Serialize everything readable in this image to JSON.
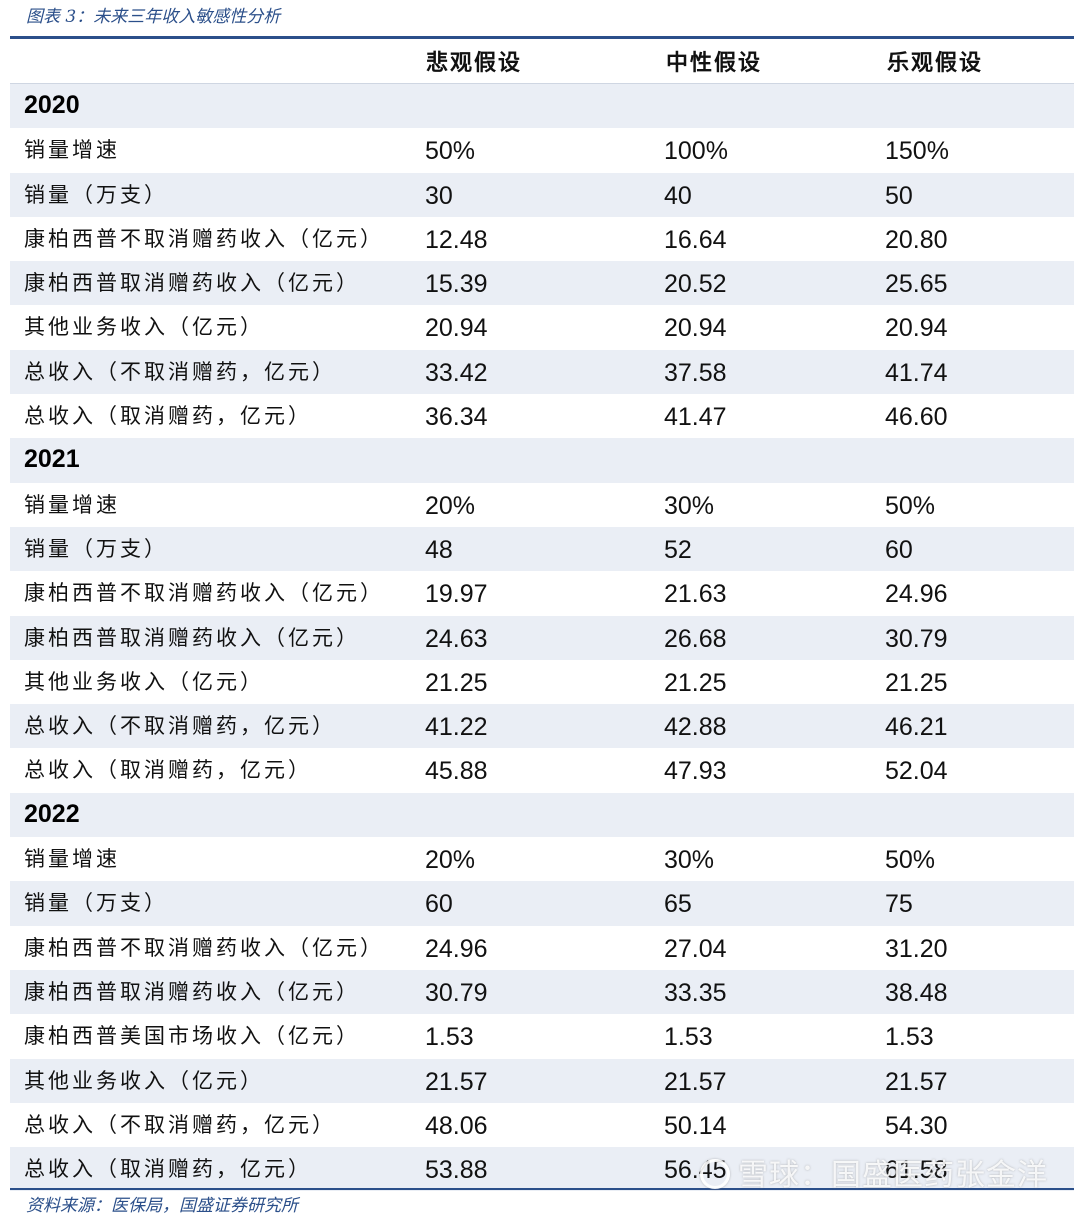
{
  "caption": "图表 3：未来三年收入敏感性分析",
  "columns": [
    "悲观假设",
    "中性假设",
    "乐观假设"
  ],
  "sections": [
    {
      "year": "2020",
      "rows": [
        {
          "label": "销量增速",
          "values": [
            "50%",
            "100%",
            "150%"
          ]
        },
        {
          "label": "销量（万支）",
          "values": [
            "30",
            "40",
            "50"
          ]
        },
        {
          "label": "康柏西普不取消赠药收入（亿元）",
          "values": [
            "12.48",
            "16.64",
            "20.80"
          ]
        },
        {
          "label": "康柏西普取消赠药收入（亿元）",
          "values": [
            "15.39",
            "20.52",
            "25.65"
          ]
        },
        {
          "label": "其他业务收入（亿元）",
          "values": [
            "20.94",
            "20.94",
            "20.94"
          ]
        },
        {
          "label": "总收入（不取消赠药，亿元）",
          "values": [
            "33.42",
            "37.58",
            "41.74"
          ]
        },
        {
          "label": "总收入（取消赠药，亿元）",
          "values": [
            "36.34",
            "41.47",
            "46.60"
          ]
        }
      ]
    },
    {
      "year": "2021",
      "rows": [
        {
          "label": "销量增速",
          "values": [
            "20%",
            "30%",
            "50%"
          ]
        },
        {
          "label": "销量（万支）",
          "values": [
            "48",
            "52",
            "60"
          ]
        },
        {
          "label": "康柏西普不取消赠药收入（亿元）",
          "values": [
            "19.97",
            "21.63",
            "24.96"
          ]
        },
        {
          "label": "康柏西普取消赠药收入（亿元）",
          "values": [
            "24.63",
            "26.68",
            "30.79"
          ]
        },
        {
          "label": "其他业务收入（亿元）",
          "values": [
            "21.25",
            "21.25",
            "21.25"
          ]
        },
        {
          "label": "总收入（不取消赠药，亿元）",
          "values": [
            "41.22",
            "42.88",
            "46.21"
          ]
        },
        {
          "label": "总收入（取消赠药，亿元）",
          "values": [
            "45.88",
            "47.93",
            "52.04"
          ]
        }
      ]
    },
    {
      "year": "2022",
      "rows": [
        {
          "label": "销量增速",
          "values": [
            "20%",
            "30%",
            "50%"
          ]
        },
        {
          "label": "销量（万支）",
          "values": [
            "60",
            "65",
            "75"
          ]
        },
        {
          "label": "康柏西普不取消赠药收入（亿元）",
          "values": [
            "24.96",
            "27.04",
            "31.20"
          ]
        },
        {
          "label": "康柏西普取消赠药收入（亿元）",
          "values": [
            "30.79",
            "33.35",
            "38.48"
          ]
        },
        {
          "label": "康柏西普美国市场收入（亿元）",
          "values": [
            "1.53",
            "1.53",
            "1.53"
          ]
        },
        {
          "label": "其他业务收入（亿元）",
          "values": [
            "21.57",
            "21.57",
            "21.57"
          ]
        },
        {
          "label": "总收入（不取消赠药，亿元）",
          "values": [
            "48.06",
            "50.14",
            "54.30"
          ]
        },
        {
          "label": "总收入（取消赠药，亿元）",
          "values": [
            "53.88",
            "56.45",
            "61.58"
          ]
        }
      ]
    }
  ],
  "source": "资料来源：医保局，国盛证券研究所",
  "watermark": "雪球：国盛医药张金洋"
}
